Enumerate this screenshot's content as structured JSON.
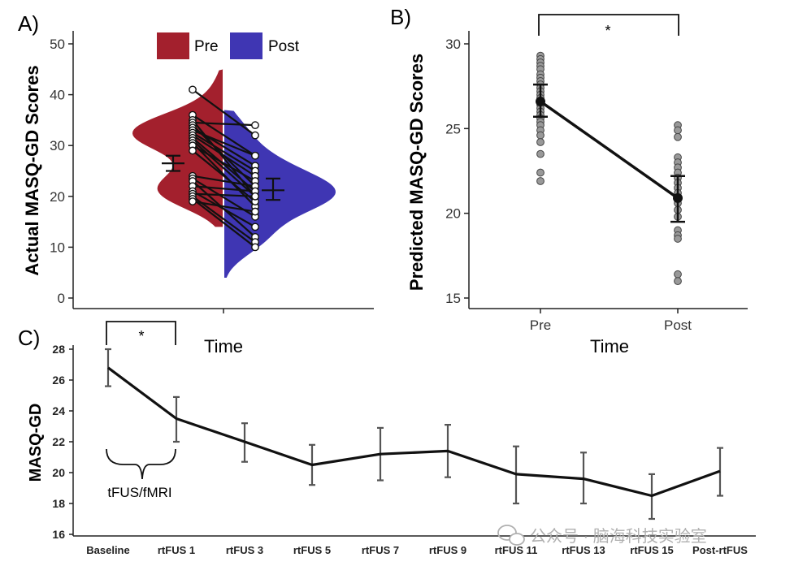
{
  "colors": {
    "pre": "#a3202d",
    "post": "#3f36b3",
    "line": "#111111",
    "errbar": "#555555",
    "point": "#999999",
    "watermark": "#b0b0b0"
  },
  "watermark": {
    "text": "公众号 · 脑海科技实验室"
  },
  "chart_data": [
    {
      "panel_label": "A)",
      "type": "violin",
      "ylabel": "Actual MASQ-GD Scores",
      "xlabel": "Time",
      "ylim": [
        0,
        50
      ],
      "yticks": [
        "0",
        "10",
        "20",
        "30",
        "40",
        "50"
      ],
      "legend": {
        "position": "top",
        "entries": [
          "Pre",
          "Post"
        ]
      },
      "series": [
        {
          "name": "Pre",
          "mean": 26.5,
          "error": [
            25.0,
            28.0
          ]
        },
        {
          "name": "Post",
          "mean": 21.2,
          "error": [
            19.3,
            23.5
          ]
        }
      ],
      "pairs": [
        [
          41,
          32
        ],
        [
          36,
          28
        ],
        [
          35,
          20
        ],
        [
          34.5,
          34
        ],
        [
          34,
          22
        ],
        [
          33.5,
          26
        ],
        [
          33,
          28
        ],
        [
          32.5,
          25
        ],
        [
          32,
          24
        ],
        [
          31.5,
          21
        ],
        [
          31,
          20
        ],
        [
          30.5,
          18
        ],
        [
          30,
          23
        ],
        [
          29,
          19
        ],
        [
          24,
          22
        ],
        [
          23.5,
          16
        ],
        [
          23,
          12
        ],
        [
          22,
          21
        ],
        [
          21,
          14
        ],
        [
          20.5,
          20
        ],
        [
          20,
          11
        ],
        [
          19.5,
          10
        ],
        [
          19,
          17
        ]
      ]
    },
    {
      "panel_label": "B)",
      "type": "scatter",
      "ylabel": "Predicted MASQ-GD Scores",
      "xlabel": "Time",
      "categories": [
        "Pre",
        "Post"
      ],
      "ylim": [
        15,
        31
      ],
      "yticks": [
        "15",
        "20",
        "25",
        "30"
      ],
      "means": [
        26.6,
        20.9
      ],
      "error": [
        [
          25.7,
          27.6
        ],
        [
          19.5,
          22.2
        ]
      ],
      "significance": "*",
      "points": [
        [
          29.3,
          29.1,
          28.9,
          28.7,
          28.5,
          28.2,
          28.0,
          27.8,
          27.6,
          27.4,
          27.2,
          27.0,
          26.8,
          26.6,
          26.4,
          26.2,
          26.0,
          25.8,
          25.6,
          25.4,
          25.2,
          24.9,
          24.6,
          24.2,
          23.5,
          22.4,
          21.9
        ],
        [
          25.2,
          24.9,
          24.5,
          23.3,
          23.0,
          22.7,
          22.4,
          22.1,
          21.8,
          21.5,
          21.2,
          20.9,
          20.6,
          20.2,
          19.8,
          19.0,
          18.7,
          18.5,
          16.4,
          16.0
        ]
      ]
    },
    {
      "panel_label": "C)",
      "type": "line",
      "ylabel": "MASQ-GD",
      "categories": [
        "Baseline",
        "rtFUS 1",
        "rtFUS 3",
        "rtFUS 5",
        "rtFUS 7",
        "rtFUS 9",
        "rtFUS 11",
        "rtFUS 13",
        "rtFUS 15",
        "Post-rtFUS"
      ],
      "values": [
        26.8,
        23.5,
        22.0,
        20.5,
        21.2,
        21.4,
        19.9,
        19.6,
        18.5,
        20.1
      ],
      "error_low": [
        25.6,
        22.0,
        20.7,
        19.2,
        19.5,
        19.7,
        18.0,
        18.0,
        17.0,
        18.5
      ],
      "error_high": [
        28.0,
        24.9,
        23.2,
        21.8,
        22.9,
        23.1,
        21.7,
        21.3,
        19.9,
        21.6
      ],
      "ylim": [
        16,
        28
      ],
      "yticks": [
        "16",
        "18",
        "20",
        "22",
        "24",
        "26",
        "28"
      ],
      "significance": "*",
      "bracket_label": "tFUS/fMRI"
    }
  ]
}
